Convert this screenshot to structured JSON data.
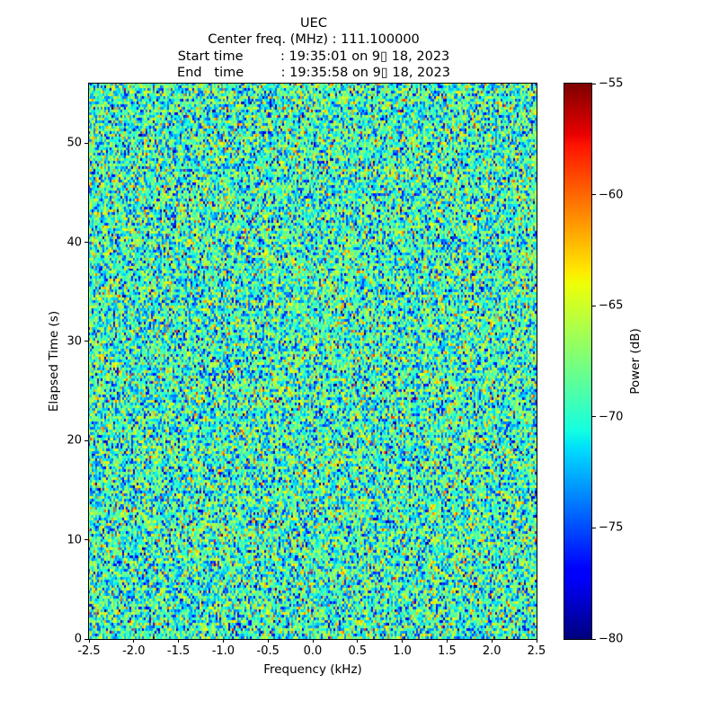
{
  "header": {
    "title": "UEC",
    "lines": [
      "Center freq. (MHz) : 111.100000",
      "Start time         : 19:35:01 on 9▯ 18, 2023",
      "End   time         : 19:35:58 on 9▯ 18, 2023"
    ]
  },
  "chart_data": {
    "type": "heatmap",
    "title": "UEC",
    "subtitle_lines": [
      "Center freq. (MHz) : 111.100000",
      "Start time         : 19:35:01 on 9▯ 18, 2023",
      "End   time         : 19:35:58 on 9▯ 18, 2023"
    ],
    "xlabel": "Frequency (kHz)",
    "ylabel": "Elapsed Time (s)",
    "xlim": [
      -2.5,
      2.5
    ],
    "ylim": [
      0,
      56
    ],
    "grid": false,
    "xticks": {
      "values": [
        -2.5,
        -2.0,
        -1.5,
        -1.0,
        -0.5,
        0.0,
        0.5,
        1.0,
        1.5,
        2.0,
        2.5
      ],
      "labels": [
        "-2.5",
        "-2.0",
        "-1.5",
        "-1.0",
        "-0.5",
        "0.0",
        "0.5",
        "1.0",
        "1.5",
        "2.0",
        "2.5"
      ]
    },
    "yticks": {
      "values": [
        0,
        10,
        20,
        30,
        40,
        50
      ],
      "labels": [
        "0",
        "10",
        "20",
        "30",
        "40",
        "50"
      ]
    },
    "colorbar": {
      "label": "Power (dB)",
      "vmin": -80,
      "vmax": -55,
      "colormap": "jet",
      "ticks": {
        "values": [
          -55,
          -60,
          -65,
          -70,
          -75,
          -80
        ],
        "labels": [
          "−55",
          "−60",
          "−65",
          "−70",
          "−75",
          "−80"
        ]
      }
    },
    "values_summary": {
      "content": "broadband random noise, no coherent signal visible",
      "mean_power_db": -69.5,
      "std_power_db": 4.0,
      "observed_range_db": [
        -80,
        -55
      ],
      "cells": {
        "cols": 250,
        "rows": 207
      }
    }
  }
}
